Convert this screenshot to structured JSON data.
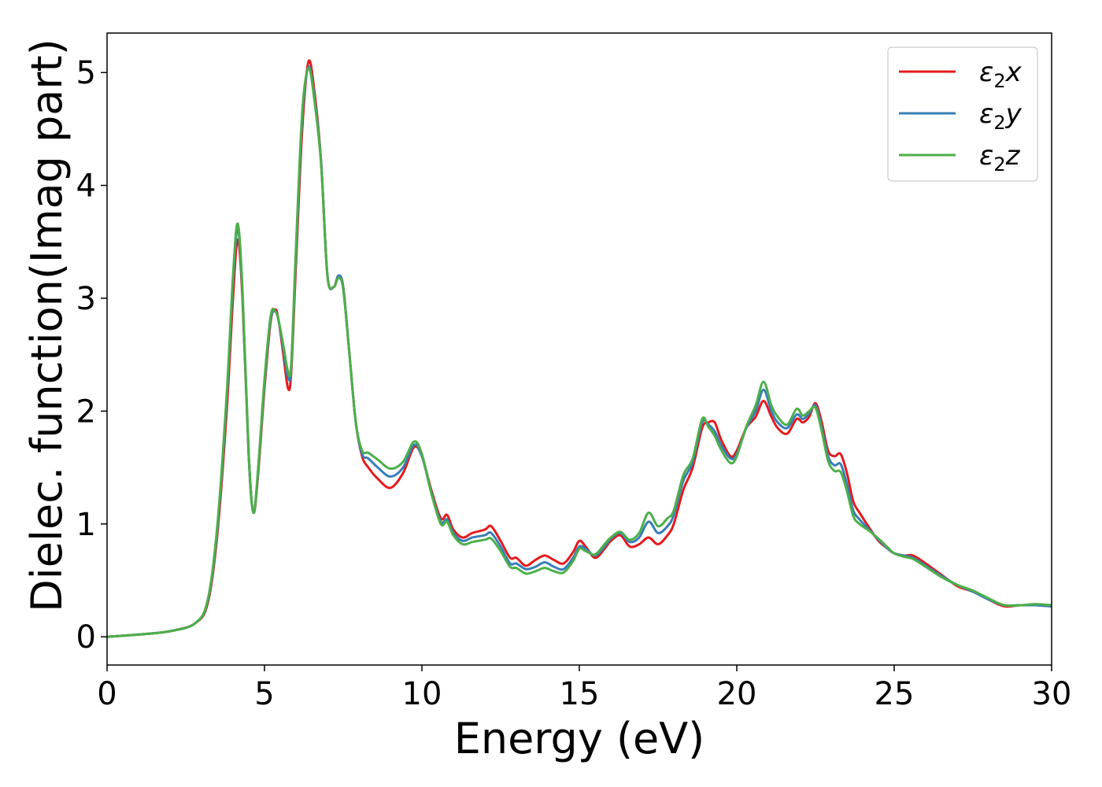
{
  "chart_data": {
    "type": "line",
    "xlabel": "Energy (eV)",
    "ylabel": "Dielec. function(Imag part)",
    "xlim": [
      0,
      30
    ],
    "ylim": [
      -0.25,
      5.35
    ],
    "xticks": [
      "0",
      "5",
      "10",
      "15",
      "20",
      "25",
      "30"
    ],
    "yticks": [
      "0",
      "1",
      "2",
      "3",
      "4",
      "5"
    ],
    "grid": false,
    "legend_position": "top-right",
    "series": [
      {
        "name": "ε2x",
        "legend_base": "ε",
        "legend_sub": "2",
        "legend_var": "x",
        "color": "#e41a1c",
        "x": [
          0,
          1,
          2,
          2.8,
          3.2,
          3.5,
          3.8,
          4.0,
          4.15,
          4.3,
          4.5,
          4.65,
          4.8,
          5.0,
          5.2,
          5.35,
          5.45,
          5.6,
          5.75,
          5.85,
          6.0,
          6.2,
          6.4,
          6.6,
          6.8,
          7.0,
          7.2,
          7.35,
          7.5,
          7.7,
          7.9,
          8.1,
          8.3,
          8.6,
          9.0,
          9.4,
          9.75,
          10.0,
          10.3,
          10.6,
          10.8,
          11.0,
          11.3,
          11.6,
          12.0,
          12.2,
          12.5,
          12.8,
          13.0,
          13.3,
          13.6,
          13.9,
          14.2,
          14.5,
          14.8,
          15.0,
          15.2,
          15.5,
          15.8,
          16.0,
          16.3,
          16.6,
          16.9,
          17.2,
          17.5,
          17.8,
          18.0,
          18.3,
          18.6,
          18.9,
          19.1,
          19.3,
          19.5,
          19.8,
          20.0,
          20.3,
          20.6,
          20.85,
          21.1,
          21.3,
          21.6,
          21.9,
          22.1,
          22.3,
          22.5,
          22.7,
          22.9,
          23.1,
          23.3,
          23.5,
          23.7,
          23.9,
          24.2,
          24.5,
          24.8,
          25.0,
          25.3,
          25.6,
          26.0,
          26.5,
          27.0,
          27.5,
          28.0,
          28.5,
          29.0,
          29.5,
          30.0
        ],
        "y": [
          0.0,
          0.02,
          0.05,
          0.12,
          0.3,
          0.9,
          2.0,
          3.0,
          3.52,
          3.0,
          1.6,
          1.1,
          1.45,
          2.2,
          2.8,
          2.9,
          2.8,
          2.5,
          2.2,
          2.35,
          3.3,
          4.5,
          5.1,
          4.8,
          4.2,
          3.2,
          3.1,
          3.2,
          3.1,
          2.5,
          1.9,
          1.6,
          1.5,
          1.4,
          1.32,
          1.45,
          1.68,
          1.6,
          1.3,
          1.05,
          1.08,
          0.95,
          0.88,
          0.92,
          0.95,
          0.98,
          0.85,
          0.7,
          0.7,
          0.63,
          0.68,
          0.72,
          0.68,
          0.65,
          0.75,
          0.85,
          0.8,
          0.7,
          0.78,
          0.85,
          0.9,
          0.8,
          0.82,
          0.88,
          0.82,
          0.9,
          1.0,
          1.3,
          1.5,
          1.85,
          1.9,
          1.9,
          1.75,
          1.6,
          1.65,
          1.85,
          1.95,
          2.09,
          1.95,
          1.85,
          1.8,
          1.93,
          1.9,
          1.95,
          2.07,
          1.9,
          1.65,
          1.6,
          1.62,
          1.45,
          1.2,
          1.1,
          0.97,
          0.85,
          0.78,
          0.74,
          0.72,
          0.72,
          0.65,
          0.55,
          0.45,
          0.4,
          0.33,
          0.27,
          0.28,
          0.28,
          0.27
        ]
      },
      {
        "name": "ε2y",
        "legend_base": "ε",
        "legend_sub": "2",
        "legend_var": "y",
        "color": "#377eb8",
        "x": [
          0,
          1,
          2,
          2.8,
          3.2,
          3.5,
          3.8,
          4.0,
          4.15,
          4.3,
          4.5,
          4.65,
          4.8,
          5.0,
          5.2,
          5.35,
          5.45,
          5.6,
          5.75,
          5.85,
          6.0,
          6.2,
          6.4,
          6.6,
          6.8,
          7.0,
          7.2,
          7.35,
          7.5,
          7.7,
          7.9,
          8.1,
          8.3,
          8.6,
          9.0,
          9.4,
          9.75,
          10.0,
          10.3,
          10.6,
          10.8,
          11.0,
          11.3,
          11.6,
          12.0,
          12.2,
          12.5,
          12.8,
          13.0,
          13.3,
          13.6,
          13.9,
          14.2,
          14.5,
          14.8,
          15.0,
          15.2,
          15.5,
          15.8,
          16.0,
          16.3,
          16.6,
          16.9,
          17.2,
          17.5,
          17.8,
          18.0,
          18.3,
          18.6,
          18.9,
          19.1,
          19.3,
          19.5,
          19.8,
          20.0,
          20.3,
          20.6,
          20.85,
          21.1,
          21.3,
          21.6,
          21.9,
          22.1,
          22.3,
          22.5,
          22.7,
          22.9,
          23.1,
          23.3,
          23.5,
          23.7,
          23.9,
          24.2,
          24.5,
          24.8,
          25.0,
          25.3,
          25.6,
          26.0,
          26.5,
          27.0,
          27.5,
          28.0,
          28.5,
          29.0,
          29.5,
          30.0
        ],
        "y": [
          0.0,
          0.02,
          0.05,
          0.12,
          0.32,
          0.95,
          2.1,
          3.15,
          3.62,
          3.05,
          1.6,
          1.1,
          1.48,
          2.25,
          2.82,
          2.88,
          2.8,
          2.55,
          2.3,
          2.4,
          3.4,
          4.6,
          5.05,
          4.75,
          4.2,
          3.2,
          3.1,
          3.2,
          3.1,
          2.5,
          1.9,
          1.62,
          1.58,
          1.5,
          1.42,
          1.5,
          1.7,
          1.6,
          1.28,
          1.02,
          1.04,
          0.92,
          0.85,
          0.88,
          0.9,
          0.92,
          0.8,
          0.65,
          0.65,
          0.6,
          0.62,
          0.66,
          0.62,
          0.6,
          0.7,
          0.8,
          0.78,
          0.72,
          0.8,
          0.87,
          0.92,
          0.84,
          0.88,
          1.02,
          0.92,
          0.98,
          1.08,
          1.38,
          1.55,
          1.9,
          1.88,
          1.82,
          1.7,
          1.58,
          1.62,
          1.85,
          2.0,
          2.19,
          2.0,
          1.9,
          1.85,
          1.97,
          1.93,
          1.98,
          2.05,
          1.85,
          1.6,
          1.52,
          1.53,
          1.35,
          1.12,
          1.04,
          0.95,
          0.86,
          0.78,
          0.74,
          0.72,
          0.7,
          0.63,
          0.54,
          0.46,
          0.4,
          0.33,
          0.28,
          0.28,
          0.28,
          0.27
        ]
      },
      {
        "name": "ε2z",
        "legend_base": "ε",
        "legend_sub": "2",
        "legend_var": "z",
        "color": "#4daf4a",
        "x": [
          0,
          1,
          2,
          2.8,
          3.2,
          3.5,
          3.8,
          4.0,
          4.15,
          4.3,
          4.5,
          4.65,
          4.8,
          5.0,
          5.2,
          5.35,
          5.45,
          5.6,
          5.75,
          5.85,
          6.0,
          6.2,
          6.4,
          6.6,
          6.8,
          7.0,
          7.2,
          7.35,
          7.5,
          7.7,
          7.9,
          8.1,
          8.3,
          8.6,
          9.0,
          9.4,
          9.75,
          10.0,
          10.3,
          10.6,
          10.8,
          11.0,
          11.3,
          11.6,
          12.0,
          12.2,
          12.5,
          12.8,
          13.0,
          13.3,
          13.6,
          13.9,
          14.2,
          14.5,
          14.8,
          15.0,
          15.2,
          15.5,
          15.8,
          16.0,
          16.3,
          16.6,
          16.9,
          17.2,
          17.5,
          17.8,
          18.0,
          18.3,
          18.6,
          18.9,
          19.1,
          19.3,
          19.5,
          19.8,
          20.0,
          20.3,
          20.6,
          20.85,
          21.1,
          21.3,
          21.6,
          21.9,
          22.1,
          22.3,
          22.5,
          22.7,
          22.9,
          23.1,
          23.3,
          23.5,
          23.7,
          23.9,
          24.2,
          24.5,
          24.8,
          25.0,
          25.3,
          25.6,
          26.0,
          26.5,
          27.0,
          27.5,
          28.0,
          28.5,
          29.0,
          29.5,
          30.0
        ],
        "y": [
          0.0,
          0.02,
          0.05,
          0.12,
          0.33,
          0.98,
          2.15,
          3.2,
          3.66,
          3.08,
          1.62,
          1.1,
          1.5,
          2.28,
          2.85,
          2.88,
          2.8,
          2.58,
          2.35,
          2.42,
          3.45,
          4.65,
          5.04,
          4.72,
          4.18,
          3.2,
          3.1,
          3.18,
          3.08,
          2.5,
          1.9,
          1.65,
          1.63,
          1.57,
          1.49,
          1.55,
          1.73,
          1.62,
          1.27,
          1.0,
          1.02,
          0.9,
          0.82,
          0.84,
          0.86,
          0.87,
          0.76,
          0.62,
          0.61,
          0.56,
          0.58,
          0.61,
          0.58,
          0.57,
          0.67,
          0.78,
          0.76,
          0.73,
          0.82,
          0.88,
          0.93,
          0.86,
          0.92,
          1.1,
          0.98,
          1.05,
          1.12,
          1.43,
          1.58,
          1.93,
          1.86,
          1.78,
          1.66,
          1.54,
          1.6,
          1.86,
          2.05,
          2.26,
          2.05,
          1.95,
          1.88,
          2.02,
          1.96,
          2.0,
          2.03,
          1.82,
          1.56,
          1.47,
          1.46,
          1.29,
          1.07,
          1.0,
          0.94,
          0.87,
          0.79,
          0.74,
          0.71,
          0.69,
          0.62,
          0.53,
          0.46,
          0.41,
          0.34,
          0.28,
          0.28,
          0.29,
          0.28
        ]
      }
    ]
  }
}
